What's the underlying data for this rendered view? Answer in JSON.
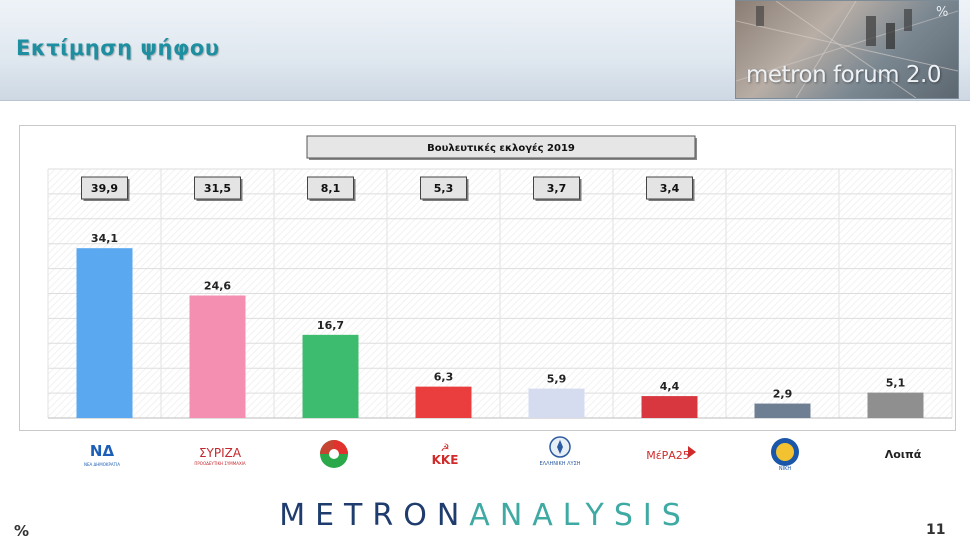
{
  "header": {
    "title": "Εκτίμηση ψήφου",
    "logo_text": "metron forum 2.0",
    "logo_percent": "%"
  },
  "chart_data": {
    "type": "bar",
    "title": "Βουλευτικές εκλογές 2019",
    "categories": [
      "ΝΔ",
      "ΣΥΡΙΖΑ",
      "ΚΙΝΑΛ",
      "ΚΚΕ",
      "ΕΛΛΗΝΙΚΗ ΛΥΣΗ",
      "ΜέΡΑ25",
      "ΝΙΚΗ",
      "Λοιπά"
    ],
    "values": [
      34.1,
      24.6,
      16.7,
      6.3,
      5.9,
      4.4,
      2.9,
      5.1
    ],
    "value_labels": [
      "34,1",
      "24,6",
      "16,7",
      "6,3",
      "5,9",
      "4,4",
      "2,9",
      "5,1"
    ],
    "reference_values": [
      39.9,
      31.5,
      8.1,
      5.3,
      3.7,
      3.4,
      null,
      null
    ],
    "reference_labels": [
      "39,9",
      "31,5",
      "8,1",
      "5,3",
      "3,7",
      "3,4",
      "",
      ""
    ],
    "colors": [
      "#5aa8f0",
      "#f48fb1",
      "#3dbb6f",
      "#ea3d3d",
      "#d6dcf0",
      "#d9373f",
      "#6f7f93",
      "#8f8f8f"
    ],
    "ylim": [
      0,
      50
    ],
    "grid": true,
    "legend": "none"
  },
  "party_logos": {
    "nd": "ΝΔ",
    "nd_sub": "ΝΕΑ ΔΗΜΟΚΡΑΤΙΑ",
    "syriza": "ΣΥΡΙΖΑ",
    "syriza_sub": "ΠΡΟΟΔΕΥΤΙΚΗ ΣΥΜΜΑΧΙΑ",
    "kke": "ΚΚΕ",
    "elliniki_lysi": "ΕΛΛΗΝΙΚΗ ΛΥΣΗ",
    "mera25": "ΜέΡΑ25",
    "niki": "ΝΙΚΗ",
    "others": "Λοιπά"
  },
  "footer": {
    "brand_part1": "METRON",
    "brand_part2": "ANALYSIS",
    "percent": "%",
    "page": "11"
  }
}
